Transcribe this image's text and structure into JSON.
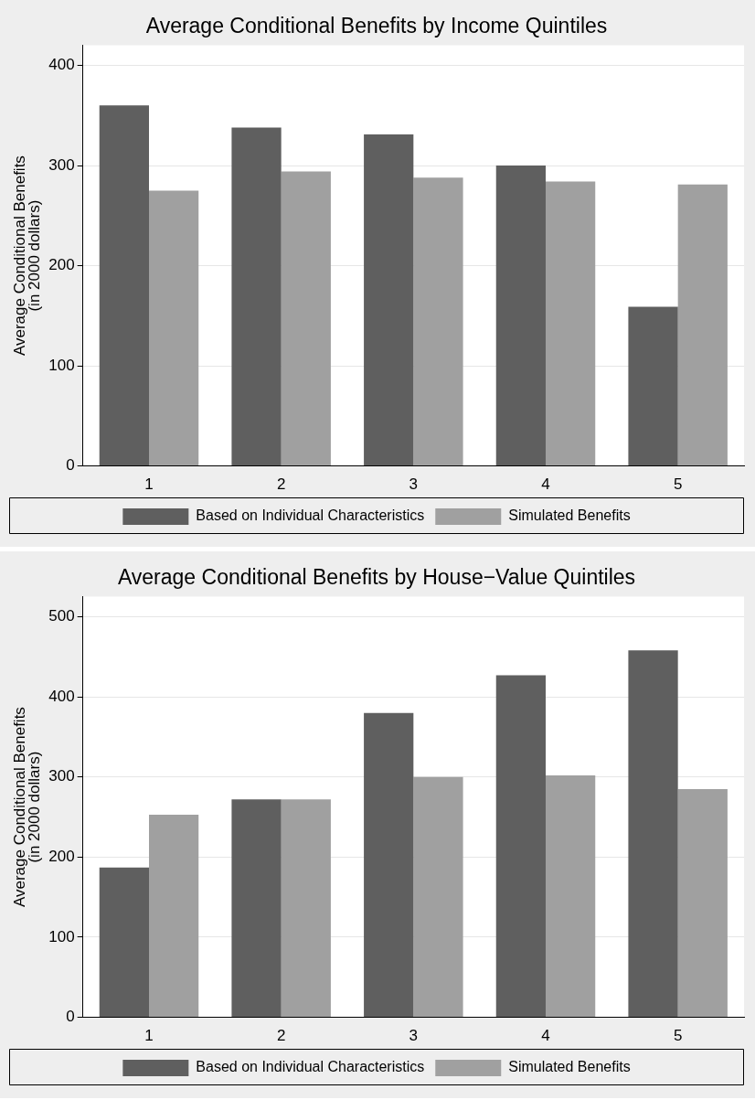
{
  "chart_data": [
    {
      "type": "bar",
      "title": "Average Conditional Benefits by Income Quintiles",
      "ylabel": "Average Conditional Benefits\n(in 2000 dollars)",
      "categories": [
        "1",
        "2",
        "3",
        "4",
        "5"
      ],
      "series": [
        {
          "name": "Based on Individual Characteristics",
          "color": "#5f5f5f",
          "values": [
            360,
            338,
            331,
            300,
            159
          ]
        },
        {
          "name": "Simulated Benefits",
          "color": "#a0a0a0",
          "values": [
            275,
            294,
            288,
            284,
            281
          ]
        }
      ],
      "ylim": [
        0,
        420
      ],
      "yticks": [
        0,
        100,
        200,
        300,
        400
      ],
      "grid": "y",
      "legend": "bottom"
    },
    {
      "type": "bar",
      "title": "Average Conditional Benefits by House−Value Quintiles",
      "ylabel": "Average Conditional Benefits\n(in 2000 dollars)",
      "categories": [
        "1",
        "2",
        "3",
        "4",
        "5"
      ],
      "series": [
        {
          "name": "Based on Individual Characteristics",
          "color": "#5f5f5f",
          "values": [
            187,
            272,
            380,
            427,
            458
          ]
        },
        {
          "name": "Simulated Benefits",
          "color": "#a0a0a0",
          "values": [
            253,
            272,
            300,
            302,
            285
          ]
        }
      ],
      "ylim": [
        0,
        525
      ],
      "yticks": [
        0,
        100,
        200,
        300,
        400,
        500
      ],
      "grid": "y",
      "legend": "bottom"
    }
  ]
}
